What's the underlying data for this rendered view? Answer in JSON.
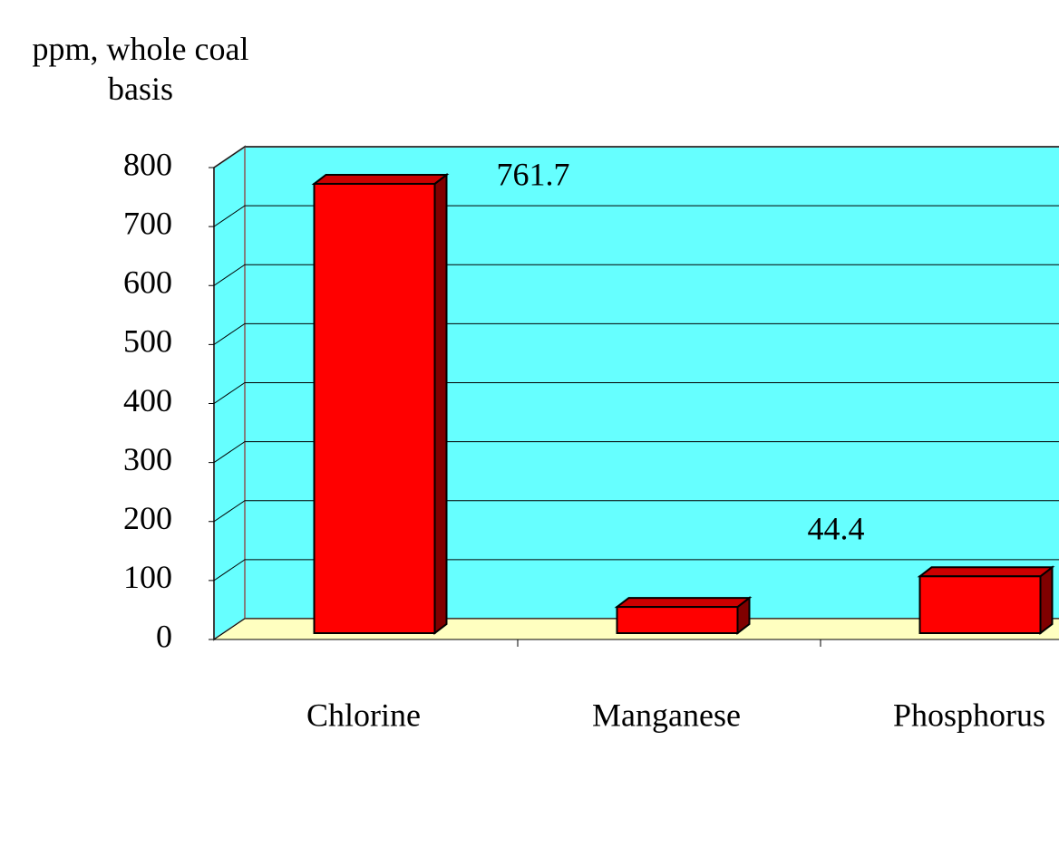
{
  "chart_data": {
    "type": "bar3d",
    "y_label": "ppm, whole coal basis",
    "categories": [
      "Chlorine",
      "Manganese",
      "Phosphorus"
    ],
    "values": [
      761.7,
      44.4,
      96.3
    ],
    "color": "#ff0000",
    "wall_color": "#66ffff",
    "floor_color": "#ffffc0",
    "ylim": [
      0,
      800
    ],
    "yticks": [
      0,
      100,
      200,
      300,
      400,
      500,
      600,
      700,
      800
    ],
    "grid": true
  }
}
